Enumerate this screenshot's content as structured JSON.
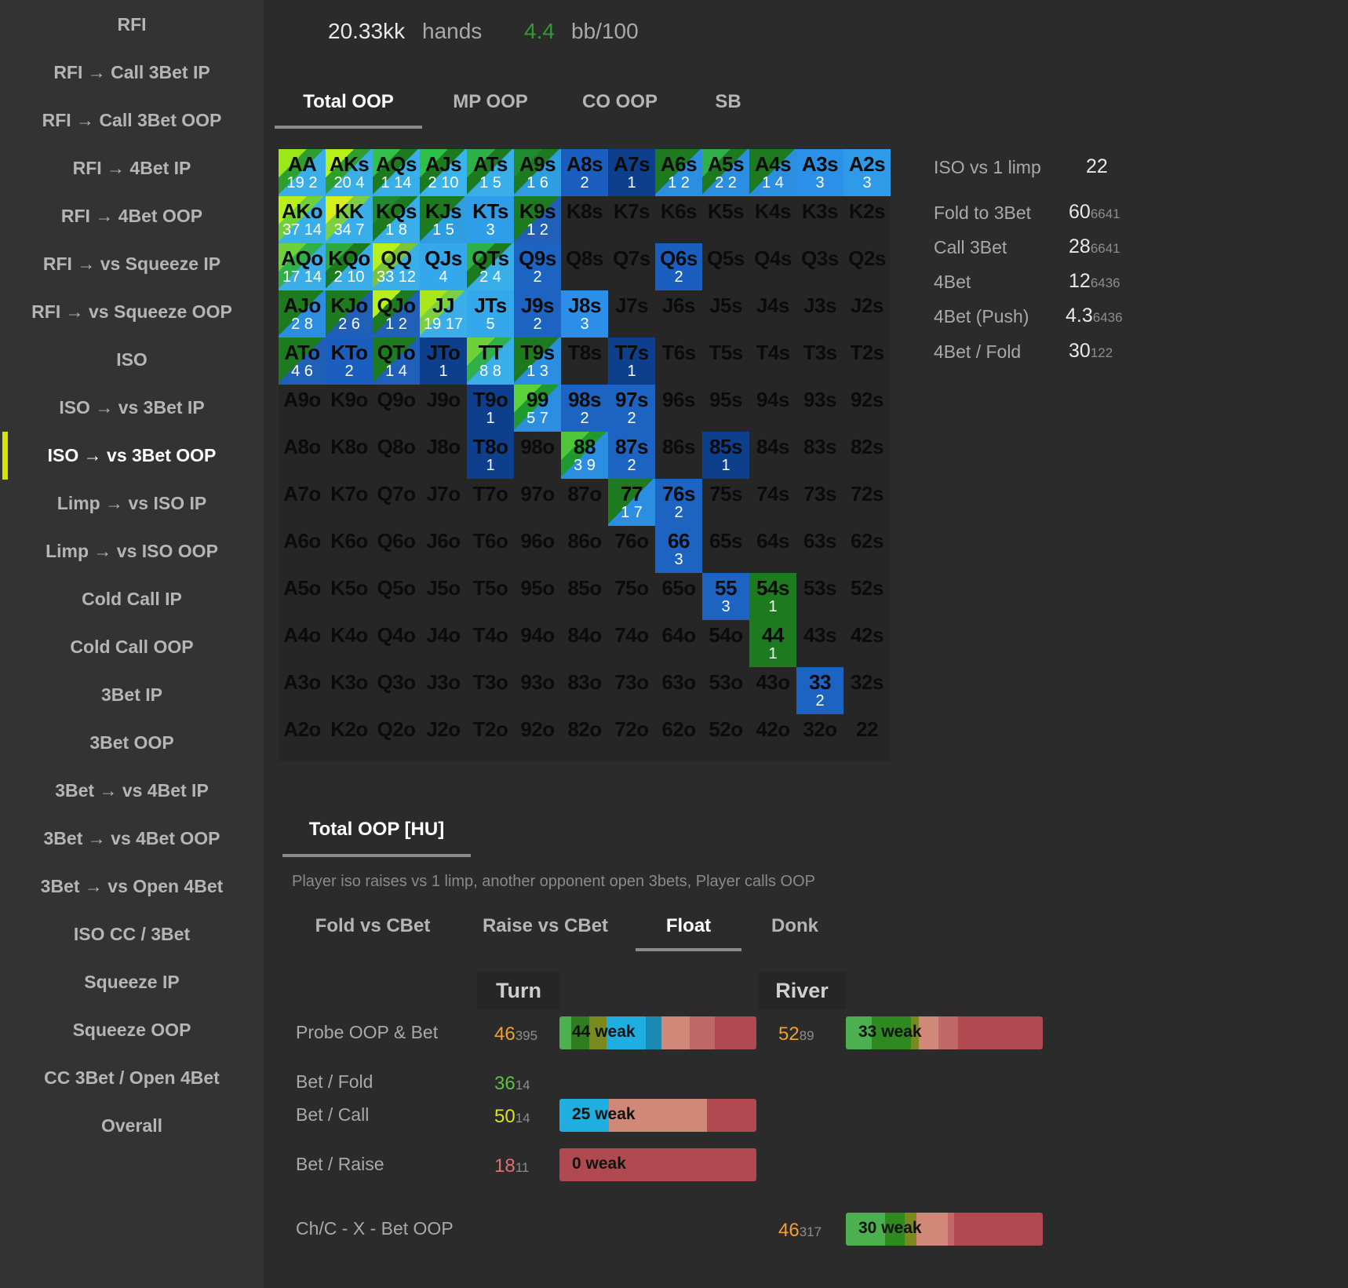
{
  "sidebar": {
    "items": [
      "RFI",
      "RFI → Call 3Bet IP",
      "RFI → Call 3Bet OOP",
      "RFI → 4Bet IP",
      "RFI → 4Bet OOP",
      "RFI → vs Squeeze IP",
      "RFI → vs Squeeze OOP",
      "ISO",
      "ISO → vs 3Bet IP",
      "ISO → vs 3Bet OOP",
      "Limp → vs ISO IP",
      "Limp → vs ISO OOP",
      "Cold Call IP",
      "Cold Call OOP",
      "3Bet IP",
      "3Bet OOP",
      "3Bet → vs 4Bet IP",
      "3Bet → vs 4Bet OOP",
      "3Bet → vs Open 4Bet",
      "ISO CC / 3Bet",
      "Squeeze IP",
      "Squeeze OOP",
      "CC 3Bet / Open 4Bet",
      "Overall"
    ],
    "active_index": 9
  },
  "header": {
    "hands_value": "20.33kk",
    "hands_label": "hands",
    "bb_value": "4.4",
    "bb_label": "bb/100",
    "bb_color": "#2e9b2e"
  },
  "position_tabs": [
    "Total OOP",
    "MP OOP",
    "CO OOP",
    "SB"
  ],
  "position_tab_active": 0,
  "grid": {
    "rows": [
      "AA,AKs,AQs,AJs,ATs,A9s,A8s,A7s,A6s,A5s,A4s,A3s,A2s",
      "AKo,KK,KQs,KJs,KTs,K9s,K8s,K7s,K6s,K5s,K4s,K3s,K2s",
      "AQo,KQo,QQ,QJs,QTs,Q9s,Q8s,Q7s,Q6s,Q5s,Q4s,Q3s,Q2s",
      "AJo,KJo,QJo,JJ,JTs,J9s,J8s,J7s,J6s,J5s,J4s,J3s,J2s",
      "ATo,KTo,QTo,JTo,TT,T9s,T8s,T7s,T6s,T5s,T4s,T3s,T2s",
      "A9o,K9o,Q9o,J9o,T9o,99,98s,97s,96s,95s,94s,93s,92s",
      "A8o,K8o,Q8o,J8o,T8o,98o,88,87s,86s,85s,84s,83s,82s",
      "A7o,K7o,Q7o,J7o,T7o,97o,87o,77,76s,75s,74s,73s,72s",
      "A6o,K6o,Q6o,J6o,T6o,96o,86o,76o,66,65s,64s,63s,62s",
      "A5o,K5o,Q5o,J5o,T5o,95o,85o,75o,65o,55,54s,53s,52s",
      "A4o,K4o,Q4o,J4o,T4o,94o,84o,74o,64o,54o,44,43s,42s",
      "A3o,K3o,Q3o,J3o,T3o,93o,83o,73o,63o,53o,43o,33,32s",
      "A2o,K2o,Q2o,J2o,T2o,92o,82o,72o,62o,52o,42o,32o,22"
    ],
    "filled": [
      {
        "r": 0,
        "c": 0,
        "nums": "19 2",
        "colors": [
          "#9be81a",
          "#2e9e2e",
          "#39aee8"
        ]
      },
      {
        "r": 0,
        "c": 1,
        "nums": "20 4",
        "colors": [
          "#b8f01a",
          "#2e9e2e",
          "#39aee8"
        ]
      },
      {
        "r": 0,
        "c": 2,
        "nums": "1 14",
        "colors": [
          "#33c04a",
          "#1e7a1e",
          "#39aee8"
        ]
      },
      {
        "r": 0,
        "c": 3,
        "nums": "2 10",
        "colors": [
          "#2fc048",
          "#1e7a1e",
          "#39b4ee"
        ]
      },
      {
        "r": 0,
        "c": 4,
        "nums": "1 5",
        "colors": [
          "#2db048",
          "#1e7a1e",
          "#39aee8"
        ]
      },
      {
        "r": 0,
        "c": 5,
        "nums": "1 6",
        "colors": [
          "#1f8a2e",
          "#1e7a1e",
          "#2f9ee0"
        ]
      },
      {
        "r": 0,
        "c": 6,
        "nums": "2",
        "colors": [
          "#1a5fbf"
        ]
      },
      {
        "r": 0,
        "c": 7,
        "nums": "1",
        "colors": [
          "#0d3f8c"
        ]
      },
      {
        "r": 0,
        "c": 8,
        "nums": "1 2",
        "colors": [
          "#1e7a1e",
          "#1e7a1e",
          "#2b8ee0"
        ]
      },
      {
        "r": 0,
        "c": 9,
        "nums": "2 2",
        "colors": [
          "#2fb048",
          "#1e7a1e",
          "#2b8ee0"
        ]
      },
      {
        "r": 0,
        "c": 10,
        "nums": "1 4",
        "colors": [
          "#1e7a1e",
          "#1e7a1e",
          "#2b8ee0"
        ]
      },
      {
        "r": 0,
        "c": 11,
        "nums": "3",
        "colors": [
          "#2b90e8"
        ]
      },
      {
        "r": 0,
        "c": 12,
        "nums": "3",
        "colors": [
          "#2f9ae8"
        ]
      },
      {
        "r": 1,
        "c": 0,
        "nums": "37 14",
        "colors": [
          "#b8f01a",
          "#6fd13a",
          "#39aee8"
        ]
      },
      {
        "r": 1,
        "c": 1,
        "nums": "34 7",
        "colors": [
          "#d7ef1a",
          "#7ad040",
          "#39aee8"
        ]
      },
      {
        "r": 1,
        "c": 2,
        "nums": "1 8",
        "colors": [
          "#1f8a2e",
          "#1e7a1e",
          "#39aee8"
        ]
      },
      {
        "r": 1,
        "c": 3,
        "nums": "1 5",
        "colors": [
          "#1e7a1e",
          "#1e7a1e",
          "#2f9ee0"
        ]
      },
      {
        "r": 1,
        "c": 4,
        "nums": "3",
        "colors": [
          "#2f9ee8"
        ]
      },
      {
        "r": 1,
        "c": 5,
        "nums": "1 2",
        "colors": [
          "#1e7a1e",
          "#1e7a1e",
          "#2060b8"
        ]
      },
      {
        "r": 2,
        "c": 0,
        "nums": "17 14",
        "colors": [
          "#6fd13a",
          "#2fb048",
          "#39aee8"
        ]
      },
      {
        "r": 2,
        "c": 1,
        "nums": "2 10",
        "colors": [
          "#2fa840",
          "#1e7a1e",
          "#39aee8"
        ]
      },
      {
        "r": 2,
        "c": 2,
        "nums": "33 12",
        "colors": [
          "#b8f01a",
          "#79c43a",
          "#39aee8"
        ]
      },
      {
        "r": 2,
        "c": 3,
        "nums": "4",
        "colors": [
          "#35a8ec"
        ]
      },
      {
        "r": 2,
        "c": 4,
        "nums": "2 4",
        "colors": [
          "#2db048",
          "#1e7a1e",
          "#39aee8"
        ]
      },
      {
        "r": 2,
        "c": 5,
        "nums": "2",
        "colors": [
          "#1d64c2"
        ]
      },
      {
        "r": 2,
        "c": 8,
        "nums": "2",
        "colors": [
          "#1a5fbf"
        ]
      },
      {
        "r": 3,
        "c": 0,
        "nums": "2 8",
        "colors": [
          "#1e7a1e",
          "#1e7a1e",
          "#2b8ee0"
        ]
      },
      {
        "r": 3,
        "c": 1,
        "nums": "2 6",
        "colors": [
          "#1e7a1e",
          "#1e7a1e",
          "#2060b8"
        ]
      },
      {
        "r": 3,
        "c": 2,
        "nums": "1 2",
        "colors": [
          "#b8f01a",
          "#1e7a1e",
          "#2060b8"
        ]
      },
      {
        "r": 3,
        "c": 3,
        "nums": "19 17",
        "colors": [
          "#a8e81a",
          "#7ad040",
          "#39aee8"
        ]
      },
      {
        "r": 3,
        "c": 4,
        "nums": "5",
        "colors": [
          "#35a8ec"
        ]
      },
      {
        "r": 3,
        "c": 5,
        "nums": "2",
        "colors": [
          "#1d64c2"
        ]
      },
      {
        "r": 3,
        "c": 6,
        "nums": "3",
        "colors": [
          "#2b8ee8"
        ]
      },
      {
        "r": 4,
        "c": 0,
        "nums": "4 6",
        "colors": [
          "#1e7a1e",
          "#1e7a1e",
          "#2060b8"
        ]
      },
      {
        "r": 4,
        "c": 1,
        "nums": "2",
        "colors": [
          "#1a5fbf"
        ]
      },
      {
        "r": 4,
        "c": 2,
        "nums": "1 4",
        "colors": [
          "#1e7a1e",
          "#1e7a1e",
          "#2060b8"
        ]
      },
      {
        "r": 4,
        "c": 3,
        "nums": "1",
        "colors": [
          "#0d3f8c"
        ]
      },
      {
        "r": 4,
        "c": 4,
        "nums": "8 8",
        "colors": [
          "#6fd13a",
          "#2fb048",
          "#39aee8"
        ]
      },
      {
        "r": 4,
        "c": 5,
        "nums": "1 3",
        "colors": [
          "#1e7a1e",
          "#1e7a1e",
          "#2b8ee0"
        ]
      },
      {
        "r": 4,
        "c": 7,
        "nums": "1",
        "colors": [
          "#0d3f8c"
        ]
      },
      {
        "r": 5,
        "c": 4,
        "nums": "1",
        "colors": [
          "#0d3f8c"
        ]
      },
      {
        "r": 5,
        "c": 5,
        "nums": "5 7",
        "colors": [
          "#5bd13a",
          "#1e9a2e",
          "#2b8ee0"
        ]
      },
      {
        "r": 5,
        "c": 6,
        "nums": "2",
        "colors": [
          "#1d64c2"
        ]
      },
      {
        "r": 5,
        "c": 7,
        "nums": "2",
        "colors": [
          "#1d64c2"
        ]
      },
      {
        "r": 6,
        "c": 4,
        "nums": "1",
        "colors": [
          "#0d3f8c"
        ]
      },
      {
        "r": 6,
        "c": 6,
        "nums": "3 9",
        "colors": [
          "#4ec83a",
          "#1e9a2e",
          "#2b8ee0"
        ]
      },
      {
        "r": 6,
        "c": 7,
        "nums": "2",
        "colors": [
          "#1d64c2"
        ]
      },
      {
        "r": 6,
        "c": 9,
        "nums": "1",
        "colors": [
          "#0d3f8c"
        ]
      },
      {
        "r": 7,
        "c": 7,
        "nums": "1 7",
        "colors": [
          "#1e7a1e",
          "#1e7a1e",
          "#2b8ee0"
        ]
      },
      {
        "r": 7,
        "c": 8,
        "nums": "2",
        "colors": [
          "#1d64c2"
        ]
      },
      {
        "r": 8,
        "c": 8,
        "nums": "3",
        "colors": [
          "#1d64c2"
        ]
      },
      {
        "r": 9,
        "c": 9,
        "nums": "3",
        "colors": [
          "#1d64c2"
        ]
      },
      {
        "r": 9,
        "c": 10,
        "nums": "1",
        "colors": [
          "#1e7a1e"
        ]
      },
      {
        "r": 10,
        "c": 10,
        "nums": "1",
        "colors": [
          "#1e7a1e"
        ]
      },
      {
        "r": 11,
        "c": 11,
        "nums": "2",
        "colors": [
          "#1d64c2"
        ]
      }
    ]
  },
  "stats": [
    {
      "label": "ISO vs 1 limp",
      "value": "22",
      "sample": ""
    },
    {
      "label": "Fold to 3Bet",
      "value": "60",
      "sample": "6641"
    },
    {
      "label": "Call 3Bet",
      "value": "28",
      "sample": "6641"
    },
    {
      "label": "4Bet",
      "value": "12",
      "sample": "6436"
    },
    {
      "label": "4Bet (Push)",
      "value": "4.3",
      "sample": "6436"
    },
    {
      "label": "4Bet / Fold",
      "value": "30",
      "sample": "122"
    }
  ],
  "section_tab": "Total OOP [HU]",
  "description": "Player iso raises vs 1 limp, another opponent open 3bets, Player calls OOP",
  "postflop_tabs": [
    "Fold vs CBet",
    "Raise vs CBet",
    "Float",
    "Donk"
  ],
  "postflop_tab_active": 2,
  "columns": {
    "turn": "Turn",
    "river": "River"
  },
  "rows": [
    {
      "label": "Probe OOP & Bet",
      "turn": {
        "pct": "46",
        "sample": "395",
        "color": "#f0a030",
        "bar": {
          "label": "44 weak",
          "segments": [
            {
              "c": "#4caf50",
              "w": 6
            },
            {
              "c": "#2e7d1e",
              "w": 9
            },
            {
              "c": "#7a8a1e",
              "w": 9
            },
            {
              "c": "#1faee0",
              "w": 20
            },
            {
              "c": "#1a8ab0",
              "w": 8
            },
            {
              "c": "#d08878",
              "w": 14
            },
            {
              "c": "#c06868",
              "w": 13
            },
            {
              "c": "#b04a50",
              "w": 21
            }
          ]
        }
      },
      "river": {
        "pct": "52",
        "sample": "89",
        "color": "#f0a030",
        "bar": {
          "label": "33 weak",
          "segments": [
            {
              "c": "#4caf50",
              "w": 13
            },
            {
              "c": "#2e8a1e",
              "w": 20
            },
            {
              "c": "#7a8a1e",
              "w": 4
            },
            {
              "c": "#d08878",
              "w": 10
            },
            {
              "c": "#c06868",
              "w": 10
            },
            {
              "c": "#b04a50",
              "w": 43
            }
          ]
        }
      }
    },
    {
      "label": "Bet / Fold",
      "turn": {
        "pct": "36",
        "sample": "14",
        "color": "#5cc040"
      }
    },
    {
      "label": "Bet / Call",
      "turn": {
        "pct": "50",
        "sample": "14",
        "color": "#e0e020",
        "bar": {
          "label": "25 weak",
          "segments": [
            {
              "c": "#1faee0",
              "w": 25
            },
            {
              "c": "#d08878",
              "w": 50
            },
            {
              "c": "#b04a50",
              "w": 25
            }
          ]
        }
      }
    },
    {
      "label": "Bet / Raise",
      "turn": {
        "pct": "18",
        "sample": "11",
        "color": "#e07070",
        "bar": {
          "label": "0 weak",
          "segments": [
            {
              "c": "#b04a50",
              "w": 100
            }
          ]
        }
      }
    },
    {
      "label": "Ch/C - X - Bet OOP",
      "river": {
        "pct": "46",
        "sample": "317",
        "color": "#f0a030",
        "bar": {
          "label": "30 weak",
          "segments": [
            {
              "c": "#4caf50",
              "w": 20
            },
            {
              "c": "#2e8a1e",
              "w": 10
            },
            {
              "c": "#7a8a1e",
              "w": 6
            },
            {
              "c": "#d08878",
              "w": 16
            },
            {
              "c": "#c06868",
              "w": 3
            },
            {
              "c": "#b04a50",
              "w": 45
            }
          ]
        }
      }
    }
  ]
}
